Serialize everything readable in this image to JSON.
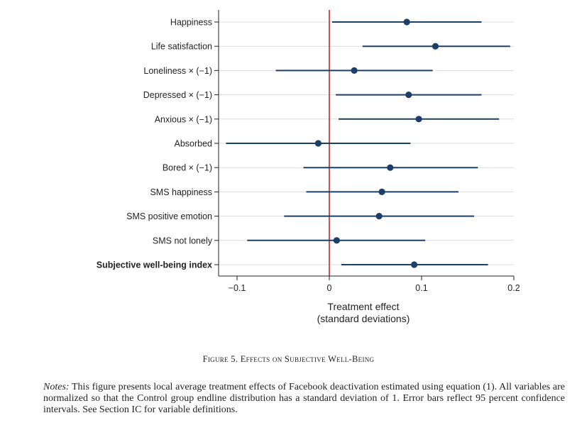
{
  "chart_data": {
    "type": "coefficient_plot",
    "xlabel_line1": "Treatment effect",
    "xlabel_line2": "(standard deviations)",
    "xlim": [
      -0.12,
      0.2
    ],
    "xticks": [
      -0.1,
      0,
      0.1,
      0.2
    ],
    "xtick_labels": [
      "−0.1",
      "0",
      "0.1",
      "0.2"
    ],
    "reference_line_x": 0,
    "grid": "horizontal",
    "colors": {
      "point": "#1b3f66",
      "reference_line": "#c0282d",
      "grid": "#dcdcdc",
      "axis": "#222222"
    },
    "rows": [
      {
        "label": "Happiness",
        "estimate": 0.084,
        "ci_low": 0.003,
        "ci_high": 0.165,
        "bold": false
      },
      {
        "label": "Life satisfaction",
        "estimate": 0.115,
        "ci_low": 0.036,
        "ci_high": 0.196,
        "bold": false
      },
      {
        "label": "Loneliness × (−1)",
        "estimate": 0.027,
        "ci_low": -0.058,
        "ci_high": 0.112,
        "bold": false
      },
      {
        "label": "Depressed × (−1)",
        "estimate": 0.086,
        "ci_low": 0.007,
        "ci_high": 0.165,
        "bold": false
      },
      {
        "label": "Anxious × (−1)",
        "estimate": 0.097,
        "ci_low": 0.01,
        "ci_high": 0.184,
        "bold": false
      },
      {
        "label": "Absorbed",
        "estimate": -0.012,
        "ci_low": -0.112,
        "ci_high": 0.088,
        "bold": false
      },
      {
        "label": "Bored × (−1)",
        "estimate": 0.066,
        "ci_low": -0.028,
        "ci_high": 0.161,
        "bold": false
      },
      {
        "label": "SMS happiness",
        "estimate": 0.057,
        "ci_low": -0.025,
        "ci_high": 0.14,
        "bold": false
      },
      {
        "label": "SMS positive emotion",
        "estimate": 0.054,
        "ci_low": -0.049,
        "ci_high": 0.157,
        "bold": false
      },
      {
        "label": "SMS not lonely",
        "estimate": 0.008,
        "ci_low": -0.089,
        "ci_high": 0.104,
        "bold": false
      },
      {
        "label": "Subjective well-being index",
        "estimate": 0.092,
        "ci_low": 0.013,
        "ci_high": 0.172,
        "bold": true
      }
    ]
  },
  "caption": {
    "figure_label": "Figure 5.",
    "title": "Effects on Subjective Well-Being"
  },
  "notes": {
    "lead": "Notes:",
    "text": "This figure presents local average treatment effects of Facebook deactivation estimated using equation (1). All variables are normalized so that the Control group endline distribution has a standard deviation of 1. Error bars reflect 95 percent confidence intervals. See Section IC for variable definitions."
  }
}
